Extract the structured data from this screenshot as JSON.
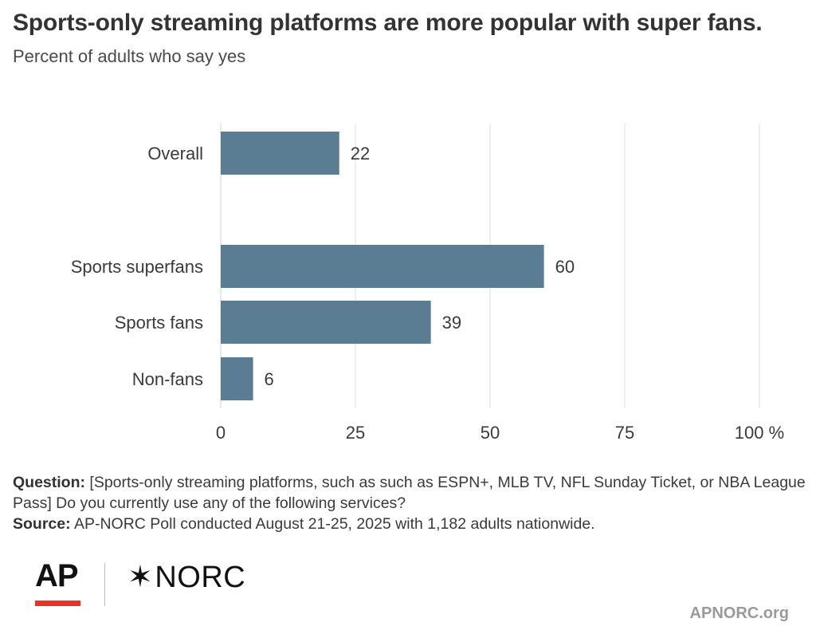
{
  "header": {
    "title": "Sports-only streaming platforms are more popular with super fans.",
    "subtitle": "Percent of adults who say yes"
  },
  "chart_data": {
    "type": "bar",
    "orientation": "horizontal",
    "categories": [
      "Overall",
      "Sports superfans",
      "Sports fans",
      "Non-fans"
    ],
    "values": [
      22,
      60,
      39,
      6
    ],
    "xlim": [
      0,
      100
    ],
    "x_ticks": [
      "0",
      "25",
      "50",
      "75",
      "100"
    ],
    "x_unit": "%",
    "grid": true,
    "bar_color": "#5b7d93"
  },
  "notes": {
    "question_label": "Question:",
    "question_text": " [Sports-only streaming platforms, such as such as ESPN+, MLB TV, NFL Sunday Ticket, or NBA League Pass] Do you currently use any of the following services?",
    "source_label": "Source:",
    "source_text": " AP-NORC Poll conducted August 21-25, 2025 with 1,182 adults nationwide."
  },
  "footer": {
    "logo_ap": "AP",
    "logo_norc_star": "✶",
    "logo_norc": "NORC",
    "site": "APNORC.org",
    "ap_accent": "#e8332b"
  }
}
